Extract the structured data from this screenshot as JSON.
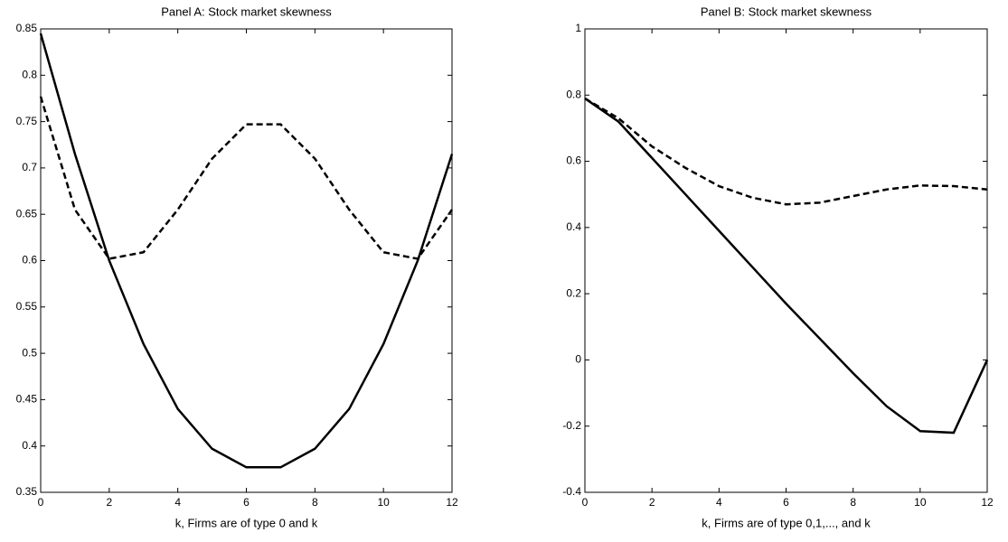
{
  "chart_data": [
    {
      "type": "line",
      "title": "Panel A: Stock market skewness",
      "xlabel": "k, Firms are of type 0 and k",
      "x": [
        0,
        1,
        2,
        3,
        4,
        5,
        6,
        7,
        8,
        9,
        10,
        11,
        12
      ],
      "series": [
        {
          "color": "#000000",
          "style": "solid",
          "values": [
            0.845,
            0.715,
            0.6,
            0.51,
            0.44,
            0.397,
            0.377,
            0.377,
            0.397,
            0.44,
            0.51,
            0.6,
            0.715
          ]
        },
        {
          "color": "#000000",
          "style": "dashed",
          "values": [
            0.777,
            0.655,
            0.602,
            0.609,
            0.655,
            0.71,
            0.747,
            0.747,
            0.71,
            0.655,
            0.609,
            0.602,
            0.655
          ]
        }
      ],
      "xlim": [
        0,
        12
      ],
      "xticks": [
        0,
        2,
        4,
        6,
        8,
        10,
        12
      ],
      "ylim": [
        0.35,
        0.85
      ],
      "yticks": [
        0.35,
        0.4,
        0.45,
        0.5,
        0.55,
        0.6,
        0.65,
        0.7,
        0.75,
        0.8,
        0.85
      ]
    },
    {
      "type": "line",
      "title": "Panel B: Stock market skewness",
      "xlabel": "k, Firms are of type 0,1,..., and k",
      "x": [
        0,
        1,
        2,
        3,
        4,
        5,
        6,
        7,
        8,
        9,
        10,
        11,
        12
      ],
      "series": [
        {
          "color": "#000000",
          "style": "solid",
          "values": [
            0.79,
            0.72,
            0.61,
            0.5,
            0.39,
            0.28,
            0.17,
            0.065,
            -0.04,
            -0.14,
            -0.215,
            -0.22,
            0
          ]
        },
        {
          "color": "#000000",
          "style": "dashed",
          "values": [
            0.79,
            0.73,
            0.645,
            0.58,
            0.525,
            0.49,
            0.47,
            0.475,
            0.495,
            0.515,
            0.527,
            0.525,
            0.515
          ]
        }
      ],
      "xlim": [
        0,
        12
      ],
      "xticks": [
        0,
        2,
        4,
        6,
        8,
        10,
        12
      ],
      "ylim": [
        -0.4,
        1
      ],
      "yticks": [
        -0.4,
        -0.2,
        0,
        0.2,
        0.4,
        0.6,
        0.8,
        1
      ]
    }
  ]
}
